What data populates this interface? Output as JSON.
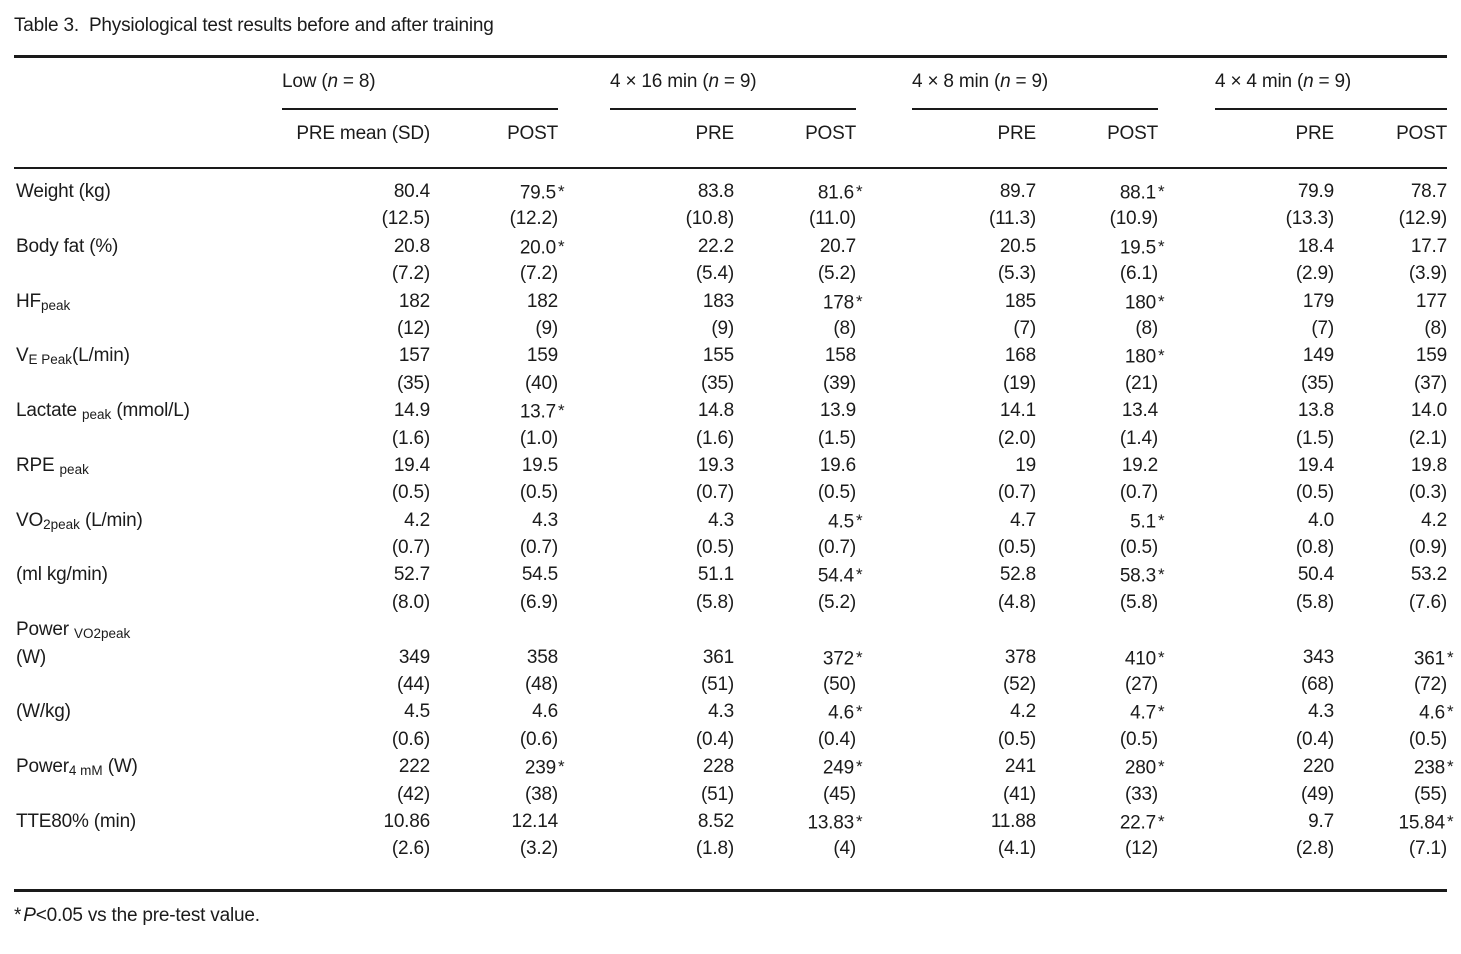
{
  "title": {
    "number": "Table 3.",
    "caption": "Physiological test results before and after training"
  },
  "footnote": {
    "star": "*",
    "p": "P",
    "rest": "<0.05 vs the pre-test value."
  },
  "table": {
    "star_symbol": "*",
    "groups": [
      {
        "label_before_n": "Low (",
        "n": "n",
        "label_after_n": " = 8)",
        "subheaders": [
          "PRE mean (SD)",
          "POST"
        ]
      },
      {
        "label_before_n": "4 × 16 min (",
        "n": "n",
        "label_after_n": " = 9)",
        "subheaders": [
          "PRE",
          "POST"
        ]
      },
      {
        "label_before_n": "4 × 8 min (",
        "n": "n",
        "label_after_n": " = 9)",
        "subheaders": [
          "PRE",
          "POST"
        ]
      },
      {
        "label_before_n": "4 × 4 min (",
        "n": "n",
        "label_after_n": " = 9)",
        "subheaders": [
          "PRE",
          "POST"
        ]
      }
    ],
    "rows": [
      {
        "label_lines": [
          [
            {
              "text": "Weight (kg)"
            }
          ]
        ],
        "cells": [
          {
            "v": "80.4",
            "sd": "(12.5)"
          },
          {
            "v": "79.5",
            "sd": "(12.2)",
            "star": true
          },
          {
            "v": "83.8",
            "sd": "(10.8)"
          },
          {
            "v": "81.6",
            "sd": "(11.0)",
            "star": true
          },
          {
            "v": "89.7",
            "sd": "(11.3)"
          },
          {
            "v": "88.1",
            "sd": "(10.9)",
            "star": true
          },
          {
            "v": "79.9",
            "sd": "(13.3)"
          },
          {
            "v": "78.7",
            "sd": "(12.9)"
          }
        ]
      },
      {
        "label_lines": [
          [
            {
              "text": "Body fat (%)"
            }
          ]
        ],
        "cells": [
          {
            "v": "20.8",
            "sd": "(7.2)"
          },
          {
            "v": "20.0",
            "sd": "(7.2)",
            "star": true
          },
          {
            "v": "22.2",
            "sd": "(5.4)"
          },
          {
            "v": "20.7",
            "sd": "(5.2)"
          },
          {
            "v": "20.5",
            "sd": "(5.3)"
          },
          {
            "v": "19.5",
            "sd": "(6.1)",
            "star": true
          },
          {
            "v": "18.4",
            "sd": "(2.9)"
          },
          {
            "v": "17.7",
            "sd": "(3.9)"
          }
        ]
      },
      {
        "label_lines": [
          [
            {
              "text": "HF"
            },
            {
              "sub": "peak"
            }
          ]
        ],
        "cells": [
          {
            "v": "182",
            "sd": "(12)"
          },
          {
            "v": "182",
            "sd": "(9)"
          },
          {
            "v": "183",
            "sd": "(9)"
          },
          {
            "v": "178",
            "sd": "(8)",
            "star": true
          },
          {
            "v": "185",
            "sd": "(7)"
          },
          {
            "v": "180",
            "sd": "(8)",
            "star": true
          },
          {
            "v": "179",
            "sd": "(7)"
          },
          {
            "v": "177",
            "sd": "(8)"
          }
        ]
      },
      {
        "label_lines": [
          [
            {
              "text": "V"
            },
            {
              "sub": "E Peak"
            },
            {
              "text": "(L/min)"
            }
          ]
        ],
        "cells": [
          {
            "v": "157",
            "sd": "(35)"
          },
          {
            "v": "159",
            "sd": "(40)"
          },
          {
            "v": "155",
            "sd": "(35)"
          },
          {
            "v": "158",
            "sd": "(39)"
          },
          {
            "v": "168",
            "sd": "(19)"
          },
          {
            "v": "180",
            "sd": "(21)",
            "star": true
          },
          {
            "v": "149",
            "sd": "(35)"
          },
          {
            "v": "159",
            "sd": "(37)"
          }
        ]
      },
      {
        "label_lines": [
          [
            {
              "text": "Lactate "
            },
            {
              "sub": "peak"
            },
            {
              "text": " (mmol/L)"
            }
          ]
        ],
        "cells": [
          {
            "v": "14.9",
            "sd": "(1.6)"
          },
          {
            "v": "13.7",
            "sd": "(1.0)",
            "star": true
          },
          {
            "v": "14.8",
            "sd": "(1.6)"
          },
          {
            "v": "13.9",
            "sd": "(1.5)"
          },
          {
            "v": "14.1",
            "sd": "(2.0)"
          },
          {
            "v": "13.4",
            "sd": "(1.4)"
          },
          {
            "v": "13.8",
            "sd": "(1.5)"
          },
          {
            "v": "14.0",
            "sd": "(2.1)"
          }
        ]
      },
      {
        "label_lines": [
          [
            {
              "text": "RPE "
            },
            {
              "sub": "peak"
            }
          ]
        ],
        "cells": [
          {
            "v": "19.4",
            "sd": "(0.5)"
          },
          {
            "v": "19.5",
            "sd": "(0.5)"
          },
          {
            "v": "19.3",
            "sd": "(0.7)"
          },
          {
            "v": "19.6",
            "sd": "(0.5)"
          },
          {
            "v": "19",
            "sd": "(0.7)"
          },
          {
            "v": "19.2",
            "sd": "(0.7)"
          },
          {
            "v": "19.4",
            "sd": "(0.5)"
          },
          {
            "v": "19.8",
            "sd": "(0.3)"
          }
        ]
      },
      {
        "label_lines": [
          [
            {
              "text": "VO"
            },
            {
              "sub": "2peak"
            },
            {
              "text": " (L/min)"
            }
          ]
        ],
        "cells": [
          {
            "v": "4.2",
            "sd": "(0.7)"
          },
          {
            "v": "4.3",
            "sd": "(0.7)"
          },
          {
            "v": "4.3",
            "sd": "(0.5)"
          },
          {
            "v": "4.5",
            "sd": "(0.7)",
            "star": true
          },
          {
            "v": "4.7",
            "sd": "(0.5)"
          },
          {
            "v": "5.1",
            "sd": "(0.5)",
            "star": true
          },
          {
            "v": "4.0",
            "sd": "(0.8)"
          },
          {
            "v": "4.2",
            "sd": "(0.9)"
          }
        ]
      },
      {
        "label_lines": [
          [
            {
              "text": "(ml kg/min)"
            }
          ]
        ],
        "cells": [
          {
            "v": "52.7",
            "sd": "(8.0)"
          },
          {
            "v": "54.5",
            "sd": "(6.9)"
          },
          {
            "v": "51.1",
            "sd": "(5.8)"
          },
          {
            "v": "54.4",
            "sd": "(5.2)",
            "star": true
          },
          {
            "v": "52.8",
            "sd": "(4.8)"
          },
          {
            "v": "58.3",
            "sd": "(5.8)",
            "star": true
          },
          {
            "v": "50.4",
            "sd": "(5.8)"
          },
          {
            "v": "53.2",
            "sd": "(7.6)"
          }
        ]
      },
      {
        "label_lines": [
          [
            {
              "text": "Power "
            },
            {
              "sub": "VO2peak"
            }
          ],
          [
            {
              "text": "(W)"
            }
          ]
        ],
        "cells": [
          {
            "v": "349",
            "sd": "(44)"
          },
          {
            "v": "358",
            "sd": "(48)"
          },
          {
            "v": "361",
            "sd": "(51)"
          },
          {
            "v": "372",
            "sd": "(50)",
            "star": true
          },
          {
            "v": "378",
            "sd": "(52)"
          },
          {
            "v": "410",
            "sd": "(27)",
            "star": true
          },
          {
            "v": "343",
            "sd": "(68)"
          },
          {
            "v": "361",
            "sd": "(72)",
            "star": true
          }
        ]
      },
      {
        "label_lines": [
          [
            {
              "text": "(W/kg)"
            }
          ]
        ],
        "cells": [
          {
            "v": "4.5",
            "sd": "(0.6)"
          },
          {
            "v": "4.6",
            "sd": "(0.6)"
          },
          {
            "v": "4.3",
            "sd": "(0.4)"
          },
          {
            "v": "4.6",
            "sd": "(0.4)",
            "star": true
          },
          {
            "v": "4.2",
            "sd": "(0.5)"
          },
          {
            "v": "4.7",
            "sd": "(0.5)",
            "star": true
          },
          {
            "v": "4.3",
            "sd": "(0.4)"
          },
          {
            "v": "4.6",
            "sd": "(0.5)",
            "star": true
          }
        ]
      },
      {
        "label_lines": [
          [
            {
              "text": "Power"
            },
            {
              "sub": "4 mM"
            },
            {
              "text": " (W)"
            }
          ]
        ],
        "cells": [
          {
            "v": "222",
            "sd": "(42)"
          },
          {
            "v": "239",
            "sd": "(38)",
            "star": true
          },
          {
            "v": "228",
            "sd": "(51)"
          },
          {
            "v": "249",
            "sd": "(45)",
            "star": true
          },
          {
            "v": "241",
            "sd": "(41)"
          },
          {
            "v": "280",
            "sd": "(33)",
            "star": true
          },
          {
            "v": "220",
            "sd": "(49)"
          },
          {
            "v": "238",
            "sd": "(55)",
            "star": true
          }
        ]
      },
      {
        "label_lines": [
          [
            {
              "text": "TTE80% (min)"
            }
          ]
        ],
        "cells": [
          {
            "v": "10.86",
            "sd": "(2.6)"
          },
          {
            "v": "12.14",
            "sd": "(3.2)"
          },
          {
            "v": "8.52",
            "sd": "(1.8)"
          },
          {
            "v": "13.83",
            "sd": "(4)",
            "star": true
          },
          {
            "v": "11.88",
            "sd": "(4.1)"
          },
          {
            "v": "22.7",
            "sd": "(12)",
            "star": true
          },
          {
            "v": "9.7",
            "sd": "(2.8)"
          },
          {
            "v": "15.84",
            "sd": "(7.1)",
            "star": true
          }
        ]
      }
    ]
  }
}
